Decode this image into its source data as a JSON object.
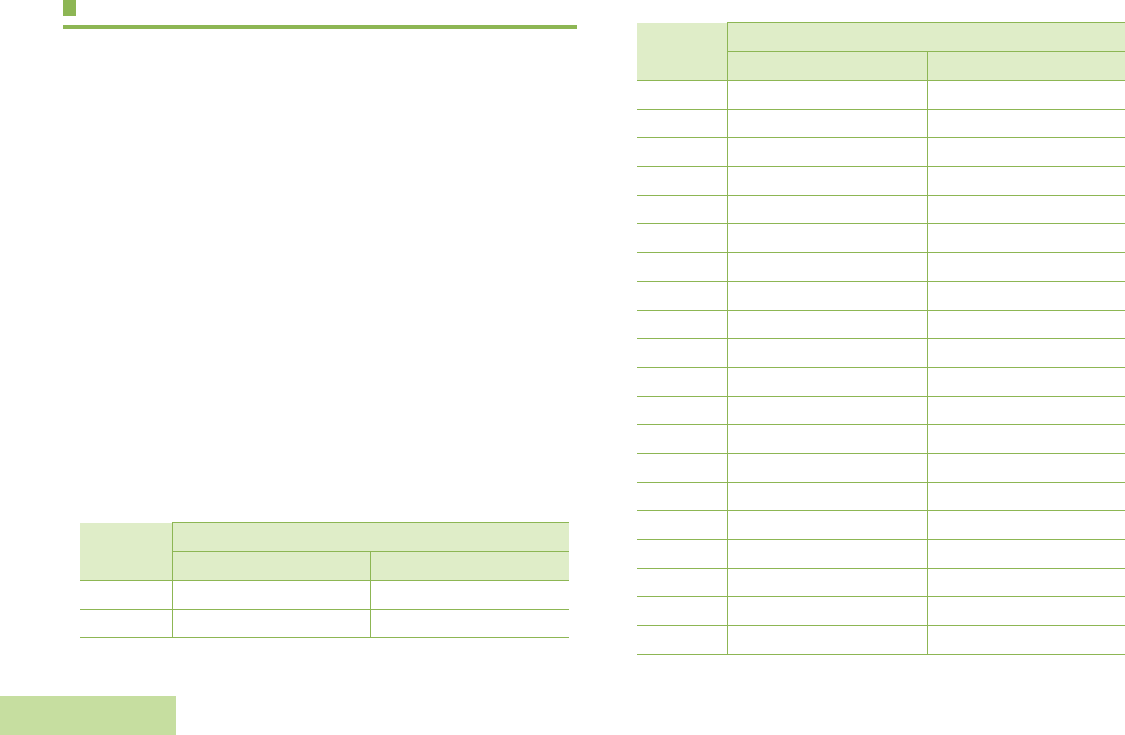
{
  "colors": {
    "accent": "#8db654",
    "header_fill": "#dfedc8",
    "tab_fill": "#c6dea0"
  },
  "heading": {
    "marker_icon": "square-marker",
    "text": ""
  },
  "footer_tab": {
    "text": ""
  },
  "table_left": {
    "col1_header": "",
    "group_header": "",
    "sub_headers": [
      "",
      ""
    ],
    "rows": [
      [
        "",
        "",
        ""
      ],
      [
        "",
        "",
        ""
      ]
    ]
  },
  "table_right": {
    "col1_header": "",
    "group_header": "",
    "sub_headers": [
      "",
      ""
    ],
    "rows": [
      [
        "",
        "",
        ""
      ],
      [
        "",
        "",
        ""
      ],
      [
        "",
        "",
        ""
      ],
      [
        "",
        "",
        ""
      ],
      [
        "",
        "",
        ""
      ],
      [
        "",
        "",
        ""
      ],
      [
        "",
        "",
        ""
      ],
      [
        "",
        "",
        ""
      ],
      [
        "",
        "",
        ""
      ],
      [
        "",
        "",
        ""
      ],
      [
        "",
        "",
        ""
      ],
      [
        "",
        "",
        ""
      ],
      [
        "",
        "",
        ""
      ],
      [
        "",
        "",
        ""
      ],
      [
        "",
        "",
        ""
      ],
      [
        "",
        "",
        ""
      ],
      [
        "",
        "",
        ""
      ],
      [
        "",
        "",
        ""
      ],
      [
        "",
        "",
        ""
      ],
      [
        "",
        "",
        ""
      ]
    ]
  }
}
